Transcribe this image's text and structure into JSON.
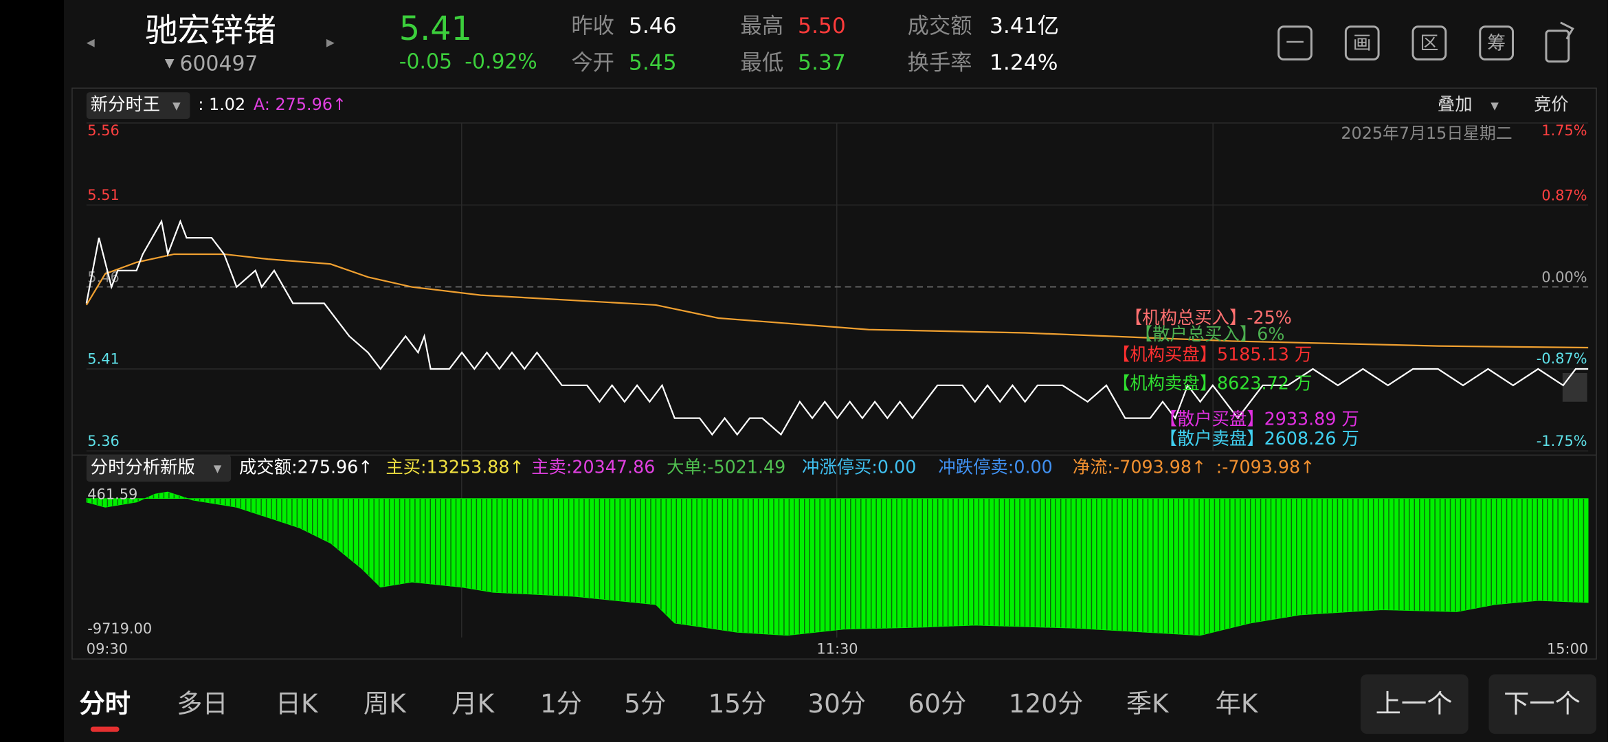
{
  "header": {
    "name": "驰宏锌锗",
    "code": "600497",
    "price": "5.41",
    "change": "-0.05",
    "change_pct": "-0.92%",
    "stats": [
      {
        "label": "昨收",
        "value": "5.46",
        "color": "#ffffff"
      },
      {
        "label": "今开",
        "value": "5.45",
        "color": "#3ccf3c"
      },
      {
        "label": "最高",
        "value": "5.50",
        "color": "#ff3b3b"
      },
      {
        "label": "最低",
        "value": "5.37",
        "color": "#3ccf3c"
      },
      {
        "label": "成交额",
        "value": "3.41亿",
        "color": "#ffffff"
      },
      {
        "label": "换手率",
        "value": "1.24%",
        "color": "#ffffff"
      }
    ]
  },
  "toolbar_icons": [
    "一",
    "画",
    "区",
    "筹"
  ],
  "chart_data": [
    {
      "type": "line",
      "indicator": "新分时王",
      "indicator_values": [
        {
          "text": ": 1.02",
          "color": "#ffffff"
        },
        {
          "text": "A: 275.96↑",
          "color": "#e040e0"
        }
      ],
      "overlay": "叠加",
      "auction": "竞价",
      "date": "2025年7月15日星期二",
      "xlim": [
        0,
        240
      ],
      "ylim": [
        5.36,
        5.56
      ],
      "yticks": [
        5.36,
        5.41,
        5.46,
        5.51,
        5.56
      ],
      "y2lim": [
        -1.75,
        1.75
      ],
      "y2ticks": [
        {
          "value": -1.75,
          "label": "-1.75%"
        },
        {
          "value": -0.87,
          "label": "-0.87%"
        },
        {
          "value": 0,
          "label": "0.00%"
        },
        {
          "value": 0.87,
          "label": "0.87%"
        },
        {
          "value": 1.75,
          "label": "1.75%"
        }
      ],
      "series": [
        {
          "color": "#ffffff",
          "x": [
            0,
            2,
            4,
            5,
            8,
            9,
            12,
            13,
            15,
            16,
            20,
            22,
            23,
            24,
            27,
            28,
            30,
            33,
            38,
            40,
            42,
            45,
            47,
            49,
            51,
            53,
            54,
            55,
            58,
            60,
            62,
            64,
            66,
            68,
            70,
            72,
            74,
            76,
            80,
            82,
            84,
            86,
            88,
            90,
            92,
            94,
            98,
            100,
            102,
            104,
            106,
            108,
            111,
            114,
            116,
            118,
            120,
            122,
            124,
            126,
            128,
            130,
            132,
            136,
            140,
            142,
            144,
            146,
            148,
            150,
            152,
            156,
            160,
            163,
            166,
            170,
            172,
            174,
            176,
            178,
            180,
            184,
            188,
            192,
            196,
            200,
            204,
            208,
            212,
            216,
            220,
            224,
            228,
            232,
            236,
            238,
            240
          ],
          "values": [
            5.45,
            5.49,
            5.46,
            5.47,
            5.47,
            5.48,
            5.5,
            5.48,
            5.5,
            5.49,
            5.49,
            5.48,
            5.47,
            5.46,
            5.47,
            5.46,
            5.47,
            5.45,
            5.45,
            5.44,
            5.43,
            5.42,
            5.41,
            5.42,
            5.43,
            5.42,
            5.43,
            5.41,
            5.41,
            5.42,
            5.41,
            5.42,
            5.41,
            5.42,
            5.41,
            5.42,
            5.41,
            5.4,
            5.4,
            5.39,
            5.4,
            5.39,
            5.4,
            5.39,
            5.4,
            5.38,
            5.38,
            5.37,
            5.38,
            5.37,
            5.38,
            5.38,
            5.37,
            5.39,
            5.38,
            5.39,
            5.38,
            5.39,
            5.38,
            5.39,
            5.38,
            5.39,
            5.38,
            5.4,
            5.4,
            5.39,
            5.4,
            5.39,
            5.4,
            5.39,
            5.4,
            5.4,
            5.39,
            5.4,
            5.38,
            5.38,
            5.39,
            5.38,
            5.4,
            5.39,
            5.4,
            5.38,
            5.4,
            5.4,
            5.41,
            5.4,
            5.41,
            5.4,
            5.41,
            5.41,
            5.4,
            5.41,
            5.4,
            5.41,
            5.4,
            5.41,
            5.41
          ]
        },
        {
          "color": "#f0a030",
          "x": [
            0,
            3,
            8,
            14,
            22,
            29,
            39,
            45,
            52,
            63,
            91,
            101,
            125,
            150,
            183,
            216,
            240
          ],
          "values": [
            5.449,
            5.468,
            5.475,
            5.48,
            5.48,
            5.477,
            5.474,
            5.466,
            5.46,
            5.455,
            5.449,
            5.441,
            5.434,
            5.432,
            5.427,
            5.424,
            5.423
          ]
        }
      ],
      "annotations": [
        {
          "text": "【机构总买入】-25%",
          "color": "#ff7070"
        },
        {
          "text": "【散户总买入】6%",
          "color": "#4caf50"
        },
        {
          "text": "【机构买盘】5185.13 万",
          "color": "#ff3030"
        },
        {
          "text": "【机构卖盘】8623.72 万",
          "color": "#30e030"
        },
        {
          "text": "【散户买盘】2933.89 万",
          "color": "#e030e0"
        },
        {
          "text": "【散户卖盘】2608.26 万",
          "color": "#40d0f0"
        }
      ]
    },
    {
      "type": "area",
      "indicator": "分时分析新版",
      "indicator_values": [
        {
          "text": "成交额:275.96↑",
          "color": "#ffffff"
        },
        {
          "text": "主买:13253.88↑",
          "color": "#f0e040"
        },
        {
          "text": "主卖:20347.86",
          "color": "#e040e0"
        },
        {
          "text": "大单:-5021.49",
          "color": "#50c050"
        },
        {
          "text": "冲涨停买:0.00",
          "color": "#40c0f0"
        },
        {
          "text": "冲跌停卖:0.00",
          "color": "#4090f0"
        },
        {
          "text": "净流:-7093.98↑",
          "color": "#f09030"
        },
        {
          "text": ":-7093.98↑",
          "color": "#f09030"
        }
      ],
      "color": "#00f000",
      "xlim": [
        0,
        240
      ],
      "xticks": [
        {
          "value": 0,
          "label": "09:30"
        },
        {
          "value": 120,
          "label": "11:30"
        },
        {
          "value": 240,
          "label": "15:00"
        }
      ],
      "ylim": [
        -9719,
        461.59
      ],
      "yticks": [
        {
          "value": -9719,
          "label": "-9719.00"
        },
        461.59
      ],
      "x": [
        0,
        3,
        8,
        11,
        13,
        17,
        24,
        29,
        34,
        39,
        44,
        47,
        52,
        60,
        65,
        78,
        91,
        94,
        104,
        112,
        121,
        134,
        142,
        158,
        178,
        186,
        194,
        207,
        219,
        225,
        232,
        240
      ],
      "values": [
        -255,
        -614,
        -255,
        318,
        461,
        -112,
        -614,
        -1331,
        -2047,
        -3123,
        -4915,
        -6206,
        -5847,
        -6206,
        -6564,
        -6851,
        -7424,
        -8715,
        -9360,
        -9575,
        -9145,
        -9002,
        -8859,
        -9073,
        -9575,
        -8715,
        -8142,
        -7783,
        -7927,
        -7424,
        -7138,
        -7281
      ]
    }
  ],
  "tabs": [
    "分时",
    "多日",
    "日K",
    "周K",
    "月K",
    "1分",
    "5分",
    "15分",
    "30分",
    "60分",
    "120分",
    "季K",
    "年K"
  ],
  "buttons": [
    "上一个",
    "下一个"
  ]
}
